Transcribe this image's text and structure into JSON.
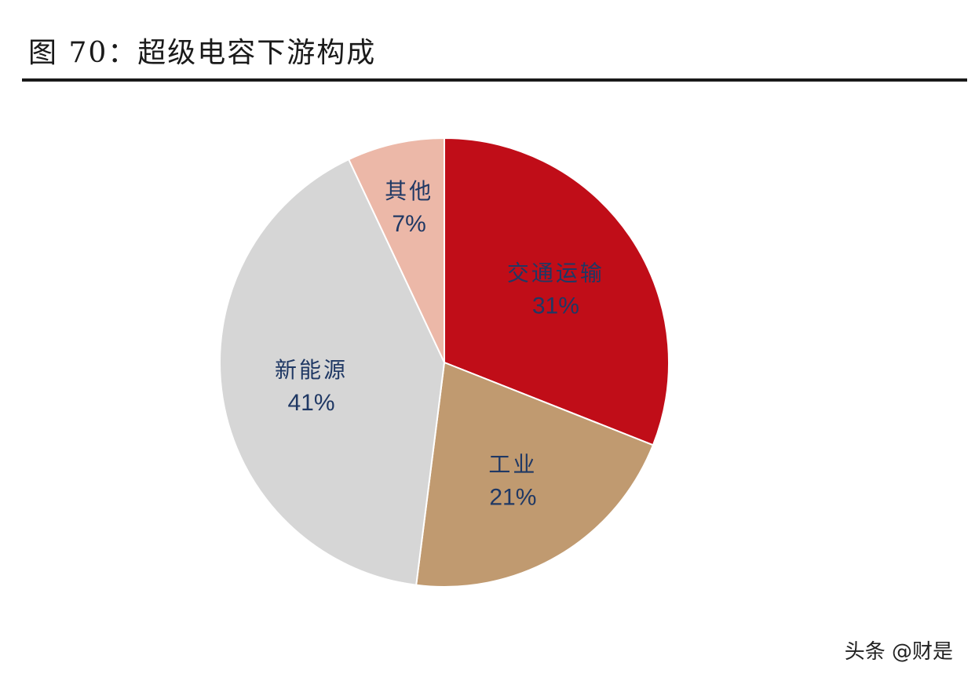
{
  "header": {
    "title": "图 70：超级电容下游构成"
  },
  "chart_data": {
    "type": "pie",
    "title": "图 70：超级电容下游构成",
    "start_angle_deg": 0,
    "direction": "clockwise",
    "slices": [
      {
        "label": "交通运输",
        "value": 31,
        "value_label": "31%",
        "color": "#c00d18"
      },
      {
        "label": "工业",
        "value": 21,
        "value_label": "21%",
        "color": "#c09a70"
      },
      {
        "label": "新能源",
        "value": 41,
        "value_label": "41%",
        "color": "#d6d6d6"
      },
      {
        "label": "其他",
        "value": 7,
        "value_label": "7%",
        "color": "#ecb8a8"
      }
    ]
  },
  "watermark": {
    "text": "头条 @财是"
  }
}
